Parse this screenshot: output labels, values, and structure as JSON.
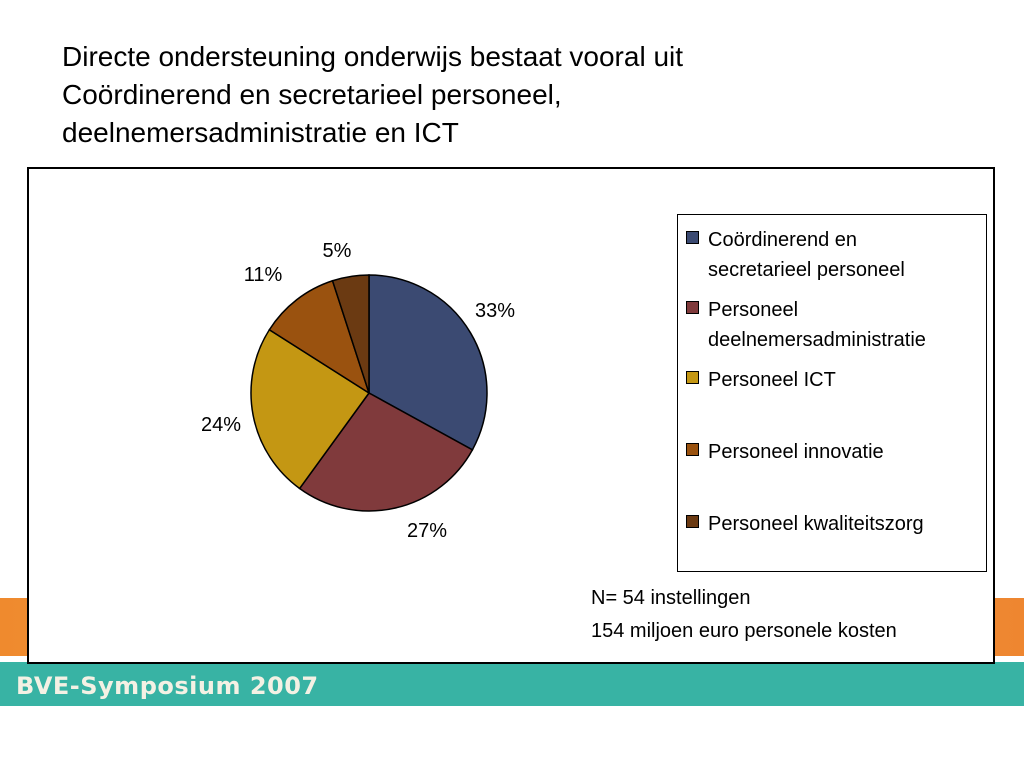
{
  "slide": {
    "title_lines": [
      "Directe ondersteuning onderwijs bestaat vooral uit",
      "Coördinerend en secretarieel personeel,",
      "deelnemersadministratie en ICT"
    ],
    "notes": [
      "N= 54 instellingen",
      "154 miljoen euro personele kosten"
    ],
    "footer": "BVE-Symposium 2007"
  },
  "chart_data": {
    "type": "pie",
    "title": "",
    "legend_position": "right",
    "slices": [
      {
        "name": "Coördinerend en\nsecretarieel personeel",
        "value": 33,
        "label": "33%",
        "color": "#3b4a72"
      },
      {
        "name": "Personeel\ndeelnemersadministratie",
        "value": 27,
        "label": "27%",
        "color": "#803a3c"
      },
      {
        "name": "Personeel ICT",
        "value": 24,
        "label": "24%",
        "color": "#c49713"
      },
      {
        "name": "Personeel innovatie",
        "value": 11,
        "label": "11%",
        "color": "#9a520f"
      },
      {
        "name": "Personeel kwaliteitszorg",
        "value": 5,
        "label": "5%",
        "color": "#6b3a12"
      }
    ]
  }
}
